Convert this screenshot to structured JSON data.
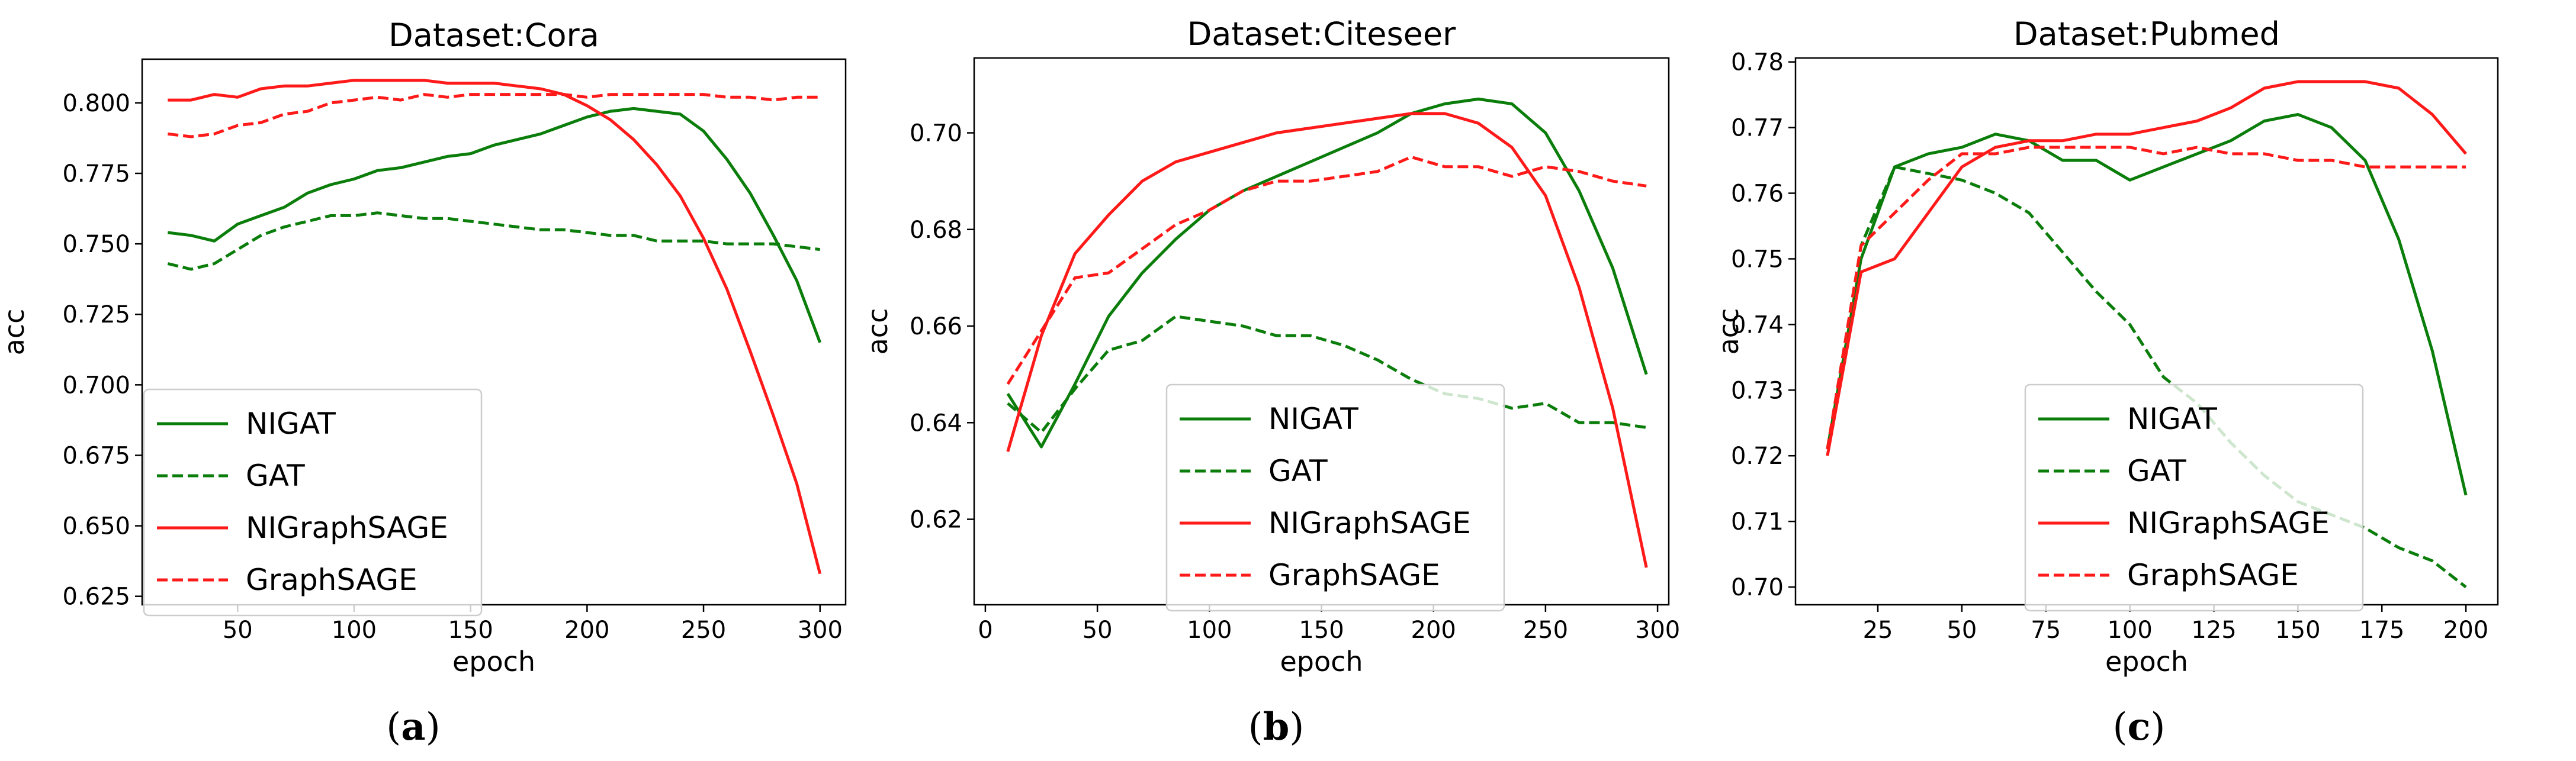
{
  "colors": {
    "nigat": "#0a7d0a",
    "nigraphsage": "#ff1a1a"
  },
  "chart_data": [
    {
      "type": "line",
      "title": "Dataset:Cora",
      "xlabel": "epoch",
      "ylabel": "acc",
      "caption": "(a)",
      "xlim": [
        9,
        311
      ],
      "ylim": [
        0.622,
        0.8155
      ],
      "xticks": [
        50,
        100,
        150,
        200,
        250,
        300
      ],
      "yticks": [
        0.625,
        0.65,
        0.675,
        0.7,
        0.725,
        0.75,
        0.775,
        0.8
      ],
      "ytick_labels": [
        "0.625",
        "0.650",
        "0.675",
        "0.700",
        "0.725",
        "0.750",
        "0.775",
        "0.800"
      ],
      "legend_position": "lower-left",
      "series": [
        {
          "name": "NIGAT",
          "style": "solid",
          "color": "green",
          "x": [
            20,
            30,
            40,
            50,
            60,
            70,
            80,
            90,
            100,
            110,
            120,
            130,
            140,
            150,
            160,
            170,
            180,
            190,
            200,
            210,
            220,
            230,
            240,
            250,
            260,
            270,
            280,
            290,
            300
          ],
          "y": [
            0.754,
            0.753,
            0.751,
            0.757,
            0.76,
            0.763,
            0.768,
            0.771,
            0.773,
            0.776,
            0.777,
            0.779,
            0.781,
            0.782,
            0.785,
            0.787,
            0.789,
            0.792,
            0.795,
            0.797,
            0.798,
            0.797,
            0.796,
            0.79,
            0.78,
            0.768,
            0.753,
            0.737,
            0.715
          ]
        },
        {
          "name": "GAT",
          "style": "dashed",
          "color": "green",
          "x": [
            20,
            30,
            40,
            50,
            60,
            70,
            80,
            90,
            100,
            110,
            120,
            130,
            140,
            150,
            160,
            170,
            180,
            190,
            200,
            210,
            220,
            230,
            240,
            250,
            260,
            270,
            280,
            290,
            300
          ],
          "y": [
            0.743,
            0.741,
            0.743,
            0.748,
            0.753,
            0.756,
            0.758,
            0.76,
            0.76,
            0.761,
            0.76,
            0.759,
            0.759,
            0.758,
            0.757,
            0.756,
            0.755,
            0.755,
            0.754,
            0.753,
            0.753,
            0.751,
            0.751,
            0.751,
            0.75,
            0.75,
            0.75,
            0.749,
            0.748
          ]
        },
        {
          "name": "NIGraphSAGE",
          "style": "solid",
          "color": "red",
          "x": [
            20,
            30,
            40,
            50,
            60,
            70,
            80,
            90,
            100,
            110,
            120,
            130,
            140,
            150,
            160,
            170,
            180,
            190,
            200,
            210,
            220,
            230,
            240,
            250,
            260,
            270,
            280,
            290,
            300
          ],
          "y": [
            0.801,
            0.801,
            0.803,
            0.802,
            0.805,
            0.806,
            0.806,
            0.807,
            0.808,
            0.808,
            0.808,
            0.808,
            0.807,
            0.807,
            0.807,
            0.806,
            0.805,
            0.803,
            0.799,
            0.794,
            0.787,
            0.778,
            0.767,
            0.752,
            0.734,
            0.712,
            0.689,
            0.665,
            0.633
          ]
        },
        {
          "name": "GraphSAGE",
          "style": "dashed",
          "color": "red",
          "x": [
            20,
            30,
            40,
            50,
            60,
            70,
            80,
            90,
            100,
            110,
            120,
            130,
            140,
            150,
            160,
            170,
            180,
            190,
            200,
            210,
            220,
            230,
            240,
            250,
            260,
            270,
            280,
            290,
            300
          ],
          "y": [
            0.789,
            0.788,
            0.789,
            0.792,
            0.793,
            0.796,
            0.797,
            0.8,
            0.801,
            0.802,
            0.801,
            0.803,
            0.802,
            0.803,
            0.803,
            0.803,
            0.803,
            0.803,
            0.802,
            0.803,
            0.803,
            0.803,
            0.803,
            0.803,
            0.802,
            0.802,
            0.801,
            0.802,
            0.802
          ]
        }
      ]
    },
    {
      "type": "line",
      "title": "Dataset:Citeseer",
      "xlabel": "epoch",
      "ylabel": "acc",
      "caption": "(b)",
      "xlim": [
        -5,
        305
      ],
      "ylim": [
        0.6023,
        0.7155
      ],
      "xticks": [
        0,
        50,
        100,
        150,
        200,
        250,
        300
      ],
      "yticks": [
        0.62,
        0.64,
        0.66,
        0.68,
        0.7
      ],
      "ytick_labels": [
        "0.62",
        "0.64",
        "0.66",
        "0.68",
        "0.70"
      ],
      "legend_position": "lower-center",
      "series": [
        {
          "name": "NIGAT",
          "style": "solid",
          "color": "green",
          "x": [
            10,
            25,
            40,
            55,
            70,
            85,
            100,
            115,
            130,
            145,
            160,
            175,
            190,
            205,
            220,
            235,
            250,
            265,
            280,
            295
          ],
          "y": [
            0.646,
            0.635,
            0.648,
            0.662,
            0.671,
            0.678,
            0.684,
            0.688,
            0.691,
            0.694,
            0.697,
            0.7,
            0.704,
            0.706,
            0.707,
            0.706,
            0.7,
            0.688,
            0.672,
            0.65
          ]
        },
        {
          "name": "GAT",
          "style": "dashed",
          "color": "green",
          "x": [
            10,
            25,
            40,
            55,
            70,
            85,
            100,
            115,
            130,
            145,
            160,
            175,
            190,
            205,
            220,
            235,
            250,
            265,
            280,
            295
          ],
          "y": [
            0.644,
            0.638,
            0.647,
            0.655,
            0.657,
            0.662,
            0.661,
            0.66,
            0.658,
            0.658,
            0.656,
            0.653,
            0.649,
            0.646,
            0.645,
            0.643,
            0.644,
            0.64,
            0.64,
            0.639
          ]
        },
        {
          "name": "NIGraphSAGE",
          "style": "solid",
          "color": "red",
          "x": [
            10,
            25,
            40,
            55,
            70,
            85,
            100,
            115,
            130,
            145,
            160,
            175,
            190,
            205,
            220,
            235,
            250,
            265,
            280,
            295
          ],
          "y": [
            0.634,
            0.658,
            0.675,
            0.683,
            0.69,
            0.694,
            0.696,
            0.698,
            0.7,
            0.701,
            0.702,
            0.703,
            0.704,
            0.704,
            0.702,
            0.697,
            0.687,
            0.668,
            0.643,
            0.61
          ]
        },
        {
          "name": "GraphSAGE",
          "style": "dashed",
          "color": "red",
          "x": [
            10,
            25,
            40,
            55,
            70,
            85,
            100,
            115,
            130,
            145,
            160,
            175,
            190,
            205,
            220,
            235,
            250,
            265,
            280,
            295
          ],
          "y": [
            0.648,
            0.659,
            0.67,
            0.671,
            0.676,
            0.681,
            0.684,
            0.688,
            0.69,
            0.69,
            0.691,
            0.692,
            0.695,
            0.693,
            0.693,
            0.691,
            0.693,
            0.692,
            0.69,
            0.689
          ]
        }
      ]
    },
    {
      "type": "line",
      "title": "Dataset:Pubmed",
      "xlabel": "epoch",
      "ylabel": "acc",
      "caption": "(c)",
      "xlim": [
        0.5,
        209.5
      ],
      "ylim": [
        0.6973,
        0.7806
      ],
      "xticks": [
        25,
        50,
        75,
        100,
        125,
        150,
        175,
        200
      ],
      "yticks": [
        0.7,
        0.71,
        0.72,
        0.73,
        0.74,
        0.75,
        0.76,
        0.77,
        0.78
      ],
      "ytick_labels": [
        "0.70",
        "0.71",
        "0.72",
        "0.73",
        "0.74",
        "0.75",
        "0.76",
        "0.77",
        "0.78"
      ],
      "legend_position": "lower-center",
      "series": [
        {
          "name": "NIGAT",
          "style": "solid",
          "color": "green",
          "x": [
            10,
            20,
            30,
            40,
            50,
            60,
            70,
            80,
            90,
            100,
            110,
            120,
            130,
            140,
            150,
            160,
            170,
            180,
            190,
            200
          ],
          "y": [
            0.721,
            0.75,
            0.764,
            0.766,
            0.767,
            0.769,
            0.768,
            0.765,
            0.765,
            0.762,
            0.764,
            0.766,
            0.768,
            0.771,
            0.772,
            0.77,
            0.765,
            0.753,
            0.736,
            0.714
          ]
        },
        {
          "name": "GAT",
          "style": "dashed",
          "color": "green",
          "x": [
            10,
            20,
            30,
            40,
            50,
            60,
            70,
            80,
            90,
            100,
            110,
            120,
            130,
            140,
            150,
            160,
            170,
            180,
            190,
            200
          ],
          "y": [
            0.721,
            0.752,
            0.764,
            0.763,
            0.762,
            0.76,
            0.757,
            0.751,
            0.745,
            0.74,
            0.732,
            0.728,
            0.722,
            0.717,
            0.713,
            0.711,
            0.709,
            0.706,
            0.704,
            0.7
          ]
        },
        {
          "name": "NIGraphSAGE",
          "style": "solid",
          "color": "red",
          "x": [
            10,
            20,
            30,
            40,
            50,
            60,
            70,
            80,
            90,
            100,
            110,
            120,
            130,
            140,
            150,
            160,
            170,
            180,
            190,
            200
          ],
          "y": [
            0.72,
            0.748,
            0.75,
            0.757,
            0.764,
            0.767,
            0.768,
            0.768,
            0.769,
            0.769,
            0.77,
            0.771,
            0.773,
            0.776,
            0.777,
            0.777,
            0.777,
            0.776,
            0.772,
            0.766
          ]
        },
        {
          "name": "GraphSAGE",
          "style": "dashed",
          "color": "red",
          "x": [
            10,
            20,
            30,
            40,
            50,
            60,
            70,
            80,
            90,
            100,
            110,
            120,
            130,
            140,
            150,
            160,
            170,
            180,
            190,
            200
          ],
          "y": [
            0.721,
            0.752,
            0.757,
            0.762,
            0.766,
            0.766,
            0.767,
            0.767,
            0.767,
            0.767,
            0.766,
            0.767,
            0.766,
            0.766,
            0.765,
            0.765,
            0.764,
            0.764,
            0.764,
            0.764
          ]
        }
      ]
    }
  ]
}
